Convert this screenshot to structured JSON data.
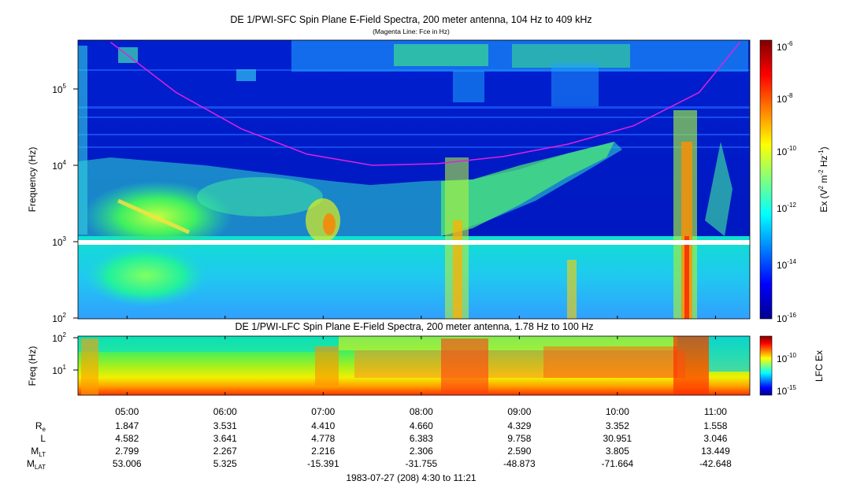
{
  "top_panel": {
    "title": "DE 1/PWI-SFC  Spin Plane E-Field Spectra, 200 meter antenna, 104 Hz to 409 kHz",
    "subtitle": "(Magenta Line: Fce in Hz)",
    "ylabel": "Frequency (Hz)",
    "yticks": [
      {
        "base": "10",
        "exp": "5"
      },
      {
        "base": "10",
        "exp": "4"
      },
      {
        "base": "10",
        "exp": "3"
      },
      {
        "base": "10",
        "exp": "2"
      }
    ],
    "colorbar": {
      "label_parts": {
        "a": "Ex (V",
        "b": "2",
        "c": " m",
        "d": "-2",
        "e": " Hz",
        "f": "-1",
        "g": ")"
      },
      "ticks": [
        {
          "base": "10",
          "exp": "-6"
        },
        {
          "base": "10",
          "exp": "-8"
        },
        {
          "base": "10",
          "exp": "-10"
        },
        {
          "base": "10",
          "exp": "-12"
        },
        {
          "base": "10",
          "exp": "-14"
        },
        {
          "base": "10",
          "exp": "-16"
        }
      ]
    }
  },
  "bottom_panel": {
    "title": "DE 1/PWI-LFC  Spin Plane E-Field Spectra, 200 meter antenna, 1.78 Hz to 100 Hz",
    "ylabel": "Freq (Hz)",
    "yticks": [
      {
        "base": "10",
        "exp": "2"
      },
      {
        "base": "10",
        "exp": "1"
      }
    ],
    "colorbar": {
      "label": "LFC Ex",
      "ticks": [
        {
          "base": "10",
          "exp": "-10"
        },
        {
          "base": "10",
          "exp": "-15"
        }
      ]
    }
  },
  "time_axis": {
    "ticks": [
      "05:00",
      "06:00",
      "07:00",
      "08:00",
      "09:00",
      "10:00",
      "11:00"
    ]
  },
  "ephemeris": {
    "rows": [
      {
        "label": "R",
        "sub": "e",
        "values": [
          "1.847",
          "3.531",
          "4.410",
          "4.660",
          "4.329",
          "3.352",
          "1.558"
        ]
      },
      {
        "label": "L",
        "sub": "",
        "values": [
          "4.582",
          "3.641",
          "4.778",
          "6.383",
          "9.758",
          "30.951",
          "3.046"
        ]
      },
      {
        "label": "M",
        "sub": "LT",
        "values": [
          "2.799",
          "2.267",
          "2.216",
          "2.306",
          "2.590",
          "3.805",
          "13.449"
        ]
      },
      {
        "label": "M",
        "sub": "LAT",
        "values": [
          "53.006",
          "5.325",
          "-15.391",
          "-31.755",
          "-48.873",
          "-71.664",
          "-42.648"
        ]
      }
    ]
  },
  "footer": "1983-07-27 (208) 4:30 to 11:21",
  "chart_data": [
    {
      "type": "heatmap",
      "title": "DE 1/PWI-SFC  Spin Plane E-Field Spectra, 200 meter antenna, 104 Hz to 409 kHz",
      "subtitle": "(Magenta Line: Fce in Hz)",
      "xlabel": "",
      "ylabel": "Frequency (Hz)",
      "x_range": [
        "04:30",
        "11:21"
      ],
      "y_range": [
        100,
        409000
      ],
      "y_scale": "log",
      "color_scale": "log",
      "color_range": [
        1e-16,
        1e-06
      ],
      "colorbar_label": "Ex (V2 m-2 Hz-1)",
      "overlay_line": {
        "label": "Fce in Hz",
        "color": "#e020e0",
        "points": [
          {
            "t": "04:50",
            "f": 409000
          },
          {
            "t": "05:30",
            "f": 90000
          },
          {
            "t": "06:10",
            "f": 30000
          },
          {
            "t": "06:50",
            "f": 14000
          },
          {
            "t": "07:30",
            "f": 10000
          },
          {
            "t": "08:10",
            "f": 10500
          },
          {
            "t": "08:50",
            "f": 13000
          },
          {
            "t": "09:30",
            "f": 19000
          },
          {
            "t": "10:10",
            "f": 33000
          },
          {
            "t": "10:50",
            "f": 90000
          },
          {
            "t": "11:15",
            "f": 409000
          }
        ]
      }
    },
    {
      "type": "heatmap",
      "title": "DE 1/PWI-LFC  Spin Plane E-Field Spectra, 200 meter antenna, 1.78 Hz to 100 Hz",
      "xlabel": "",
      "ylabel": "Freq (Hz)",
      "x_range": [
        "04:30",
        "11:21"
      ],
      "y_range": [
        1.78,
        100
      ],
      "y_scale": "log",
      "color_scale": "log",
      "colorbar_label": "LFC Ex"
    }
  ]
}
